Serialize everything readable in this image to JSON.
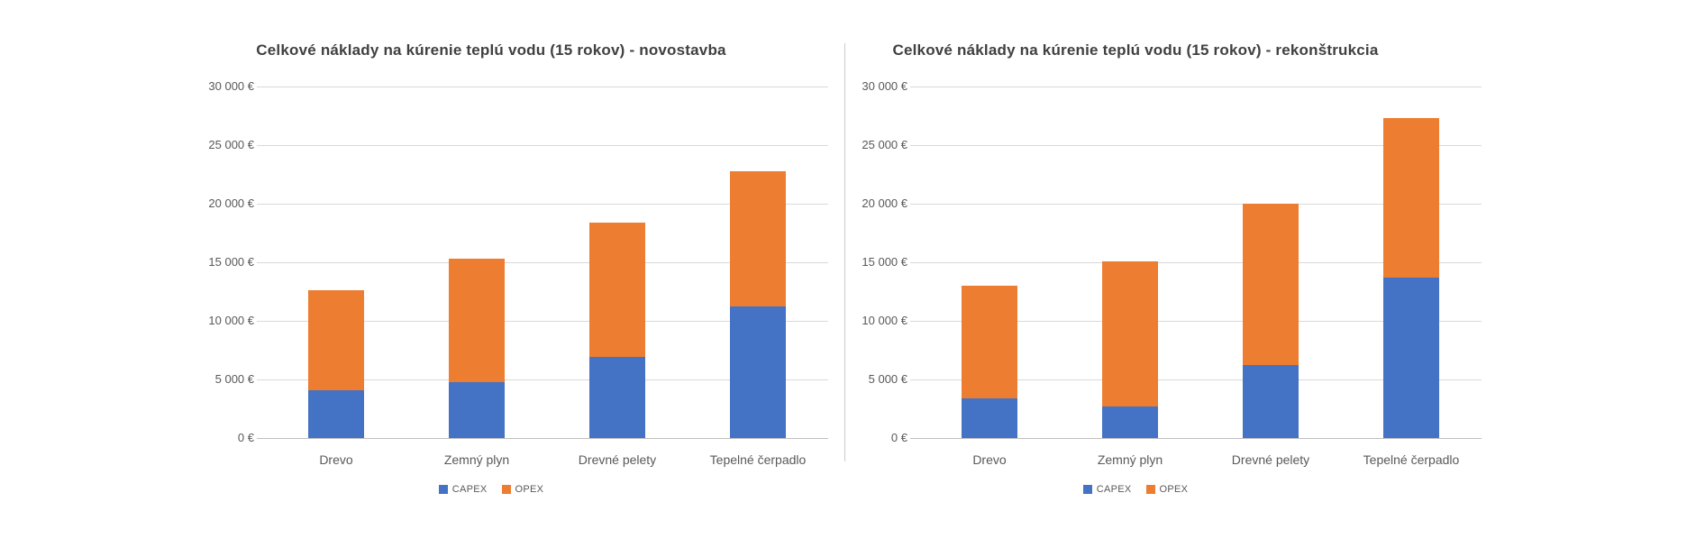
{
  "page": {
    "background": "#ffffff",
    "divider_color": "#cbcbcb",
    "gridline_color": "#d9d9d9",
    "axis_line_color": "#bfbfbf",
    "title_color": "#404040",
    "label_color": "#595959"
  },
  "chart_data": [
    {
      "type": "bar",
      "stacked": true,
      "title": "Celkové náklady na kúrenie teplú vodu (15 rokov) - novostavba",
      "categories": [
        "Drevo",
        "Zemný plyn",
        "Drevné pelety",
        "Tepelné čerpadlo"
      ],
      "series": [
        {
          "name": "CAPEX",
          "color": "#4472C4",
          "values": [
            4100,
            4800,
            6900,
            11200
          ]
        },
        {
          "name": "OPEX",
          "color": "#ED7D31",
          "values": [
            8500,
            10500,
            11500,
            11600
          ]
        }
      ],
      "xlabel": "",
      "ylabel": "",
      "ylim": [
        0,
        30000
      ],
      "ytick_step": 5000,
      "ytick_suffix": "€",
      "grid": true,
      "legend_position": "bottom"
    },
    {
      "type": "bar",
      "stacked": true,
      "title": "Celkové náklady na kúrenie teplú vodu (15 rokov) - rekonštrukcia",
      "categories": [
        "Drevo",
        "Zemný plyn",
        "Drevné pelety",
        "Tepelné čerpadlo"
      ],
      "series": [
        {
          "name": "CAPEX",
          "color": "#4472C4",
          "values": [
            3400,
            2700,
            6200,
            13700
          ]
        },
        {
          "name": "OPEX",
          "color": "#ED7D31",
          "values": [
            9600,
            12400,
            13800,
            13600
          ]
        }
      ],
      "xlabel": "",
      "ylabel": "",
      "ylim": [
        0,
        30000
      ],
      "ytick_step": 5000,
      "ytick_suffix": "€",
      "grid": true,
      "legend_position": "bottom"
    }
  ]
}
